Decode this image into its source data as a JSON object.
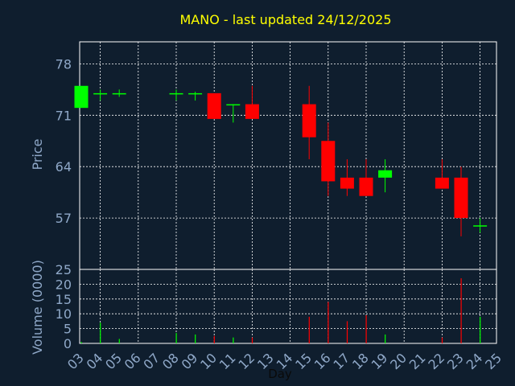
{
  "colors": {
    "background": "#0f1e2e",
    "panel_border": "#ffffff",
    "grid": "#ffffff",
    "title": "#ffff00",
    "axis_text": "#8fa8c8",
    "up": "#00ff00",
    "down": "#ff0000"
  },
  "chart_data": [
    {
      "type": "candlestick",
      "title": "MANO - last updated 24/12/2025",
      "xlabel": "",
      "ylabel": "Price",
      "ylim": [
        50,
        81
      ],
      "yticks": [
        57,
        64,
        71,
        78
      ],
      "grid": true,
      "x": [
        "03",
        "04",
        "05",
        "08",
        "09",
        "10",
        "11",
        "12",
        "15",
        "16",
        "17",
        "18",
        "19",
        "22",
        "23",
        "24"
      ],
      "open": [
        72.0,
        74.0,
        74.0,
        74.0,
        74.0,
        74.0,
        72.5,
        72.5,
        72.5,
        67.5,
        62.5,
        62.5,
        62.5,
        62.5,
        62.5,
        56.0
      ],
      "high": [
        75.0,
        74.5,
        74.5,
        74.5,
        74.2,
        74.0,
        72.5,
        75.0,
        75.0,
        70.0,
        65.0,
        65.0,
        65.0,
        65.0,
        64.0,
        57.0
      ],
      "low": [
        72.0,
        73.0,
        73.5,
        73.0,
        73.0,
        70.5,
        70.0,
        70.5,
        65.0,
        60.0,
        60.0,
        60.0,
        60.5,
        61.0,
        54.5,
        55.0
      ],
      "close": [
        75.0,
        74.0,
        74.0,
        74.0,
        74.0,
        70.5,
        72.5,
        70.5,
        68.0,
        62.0,
        61.0,
        60.0,
        63.5,
        61.0,
        57.0,
        56.0
      ]
    },
    {
      "type": "bar",
      "xlabel": "Day",
      "ylabel": "Volume (0000)",
      "ylim": [
        0,
        25
      ],
      "yticks": [
        0,
        5,
        10,
        15,
        20,
        25
      ],
      "grid": true,
      "categories": [
        "03",
        "04",
        "05",
        "06",
        "07",
        "08",
        "09",
        "10",
        "11",
        "12",
        "13",
        "14",
        "15",
        "16",
        "17",
        "18",
        "19",
        "20",
        "21",
        "22",
        "23",
        "24",
        "25"
      ],
      "values": [
        0.5,
        7,
        1.5,
        0,
        0,
        3.5,
        3,
        2.5,
        2,
        2,
        0,
        0,
        9,
        14,
        7.5,
        9.5,
        3,
        0,
        0,
        2,
        22,
        9,
        0
      ],
      "colors": [
        "up",
        "up",
        "up",
        "up",
        "up",
        "up",
        "up",
        "down",
        "up",
        "down",
        "up",
        "up",
        "down",
        "down",
        "down",
        "down",
        "up",
        "up",
        "up",
        "down",
        "down",
        "up",
        "up"
      ]
    }
  ]
}
